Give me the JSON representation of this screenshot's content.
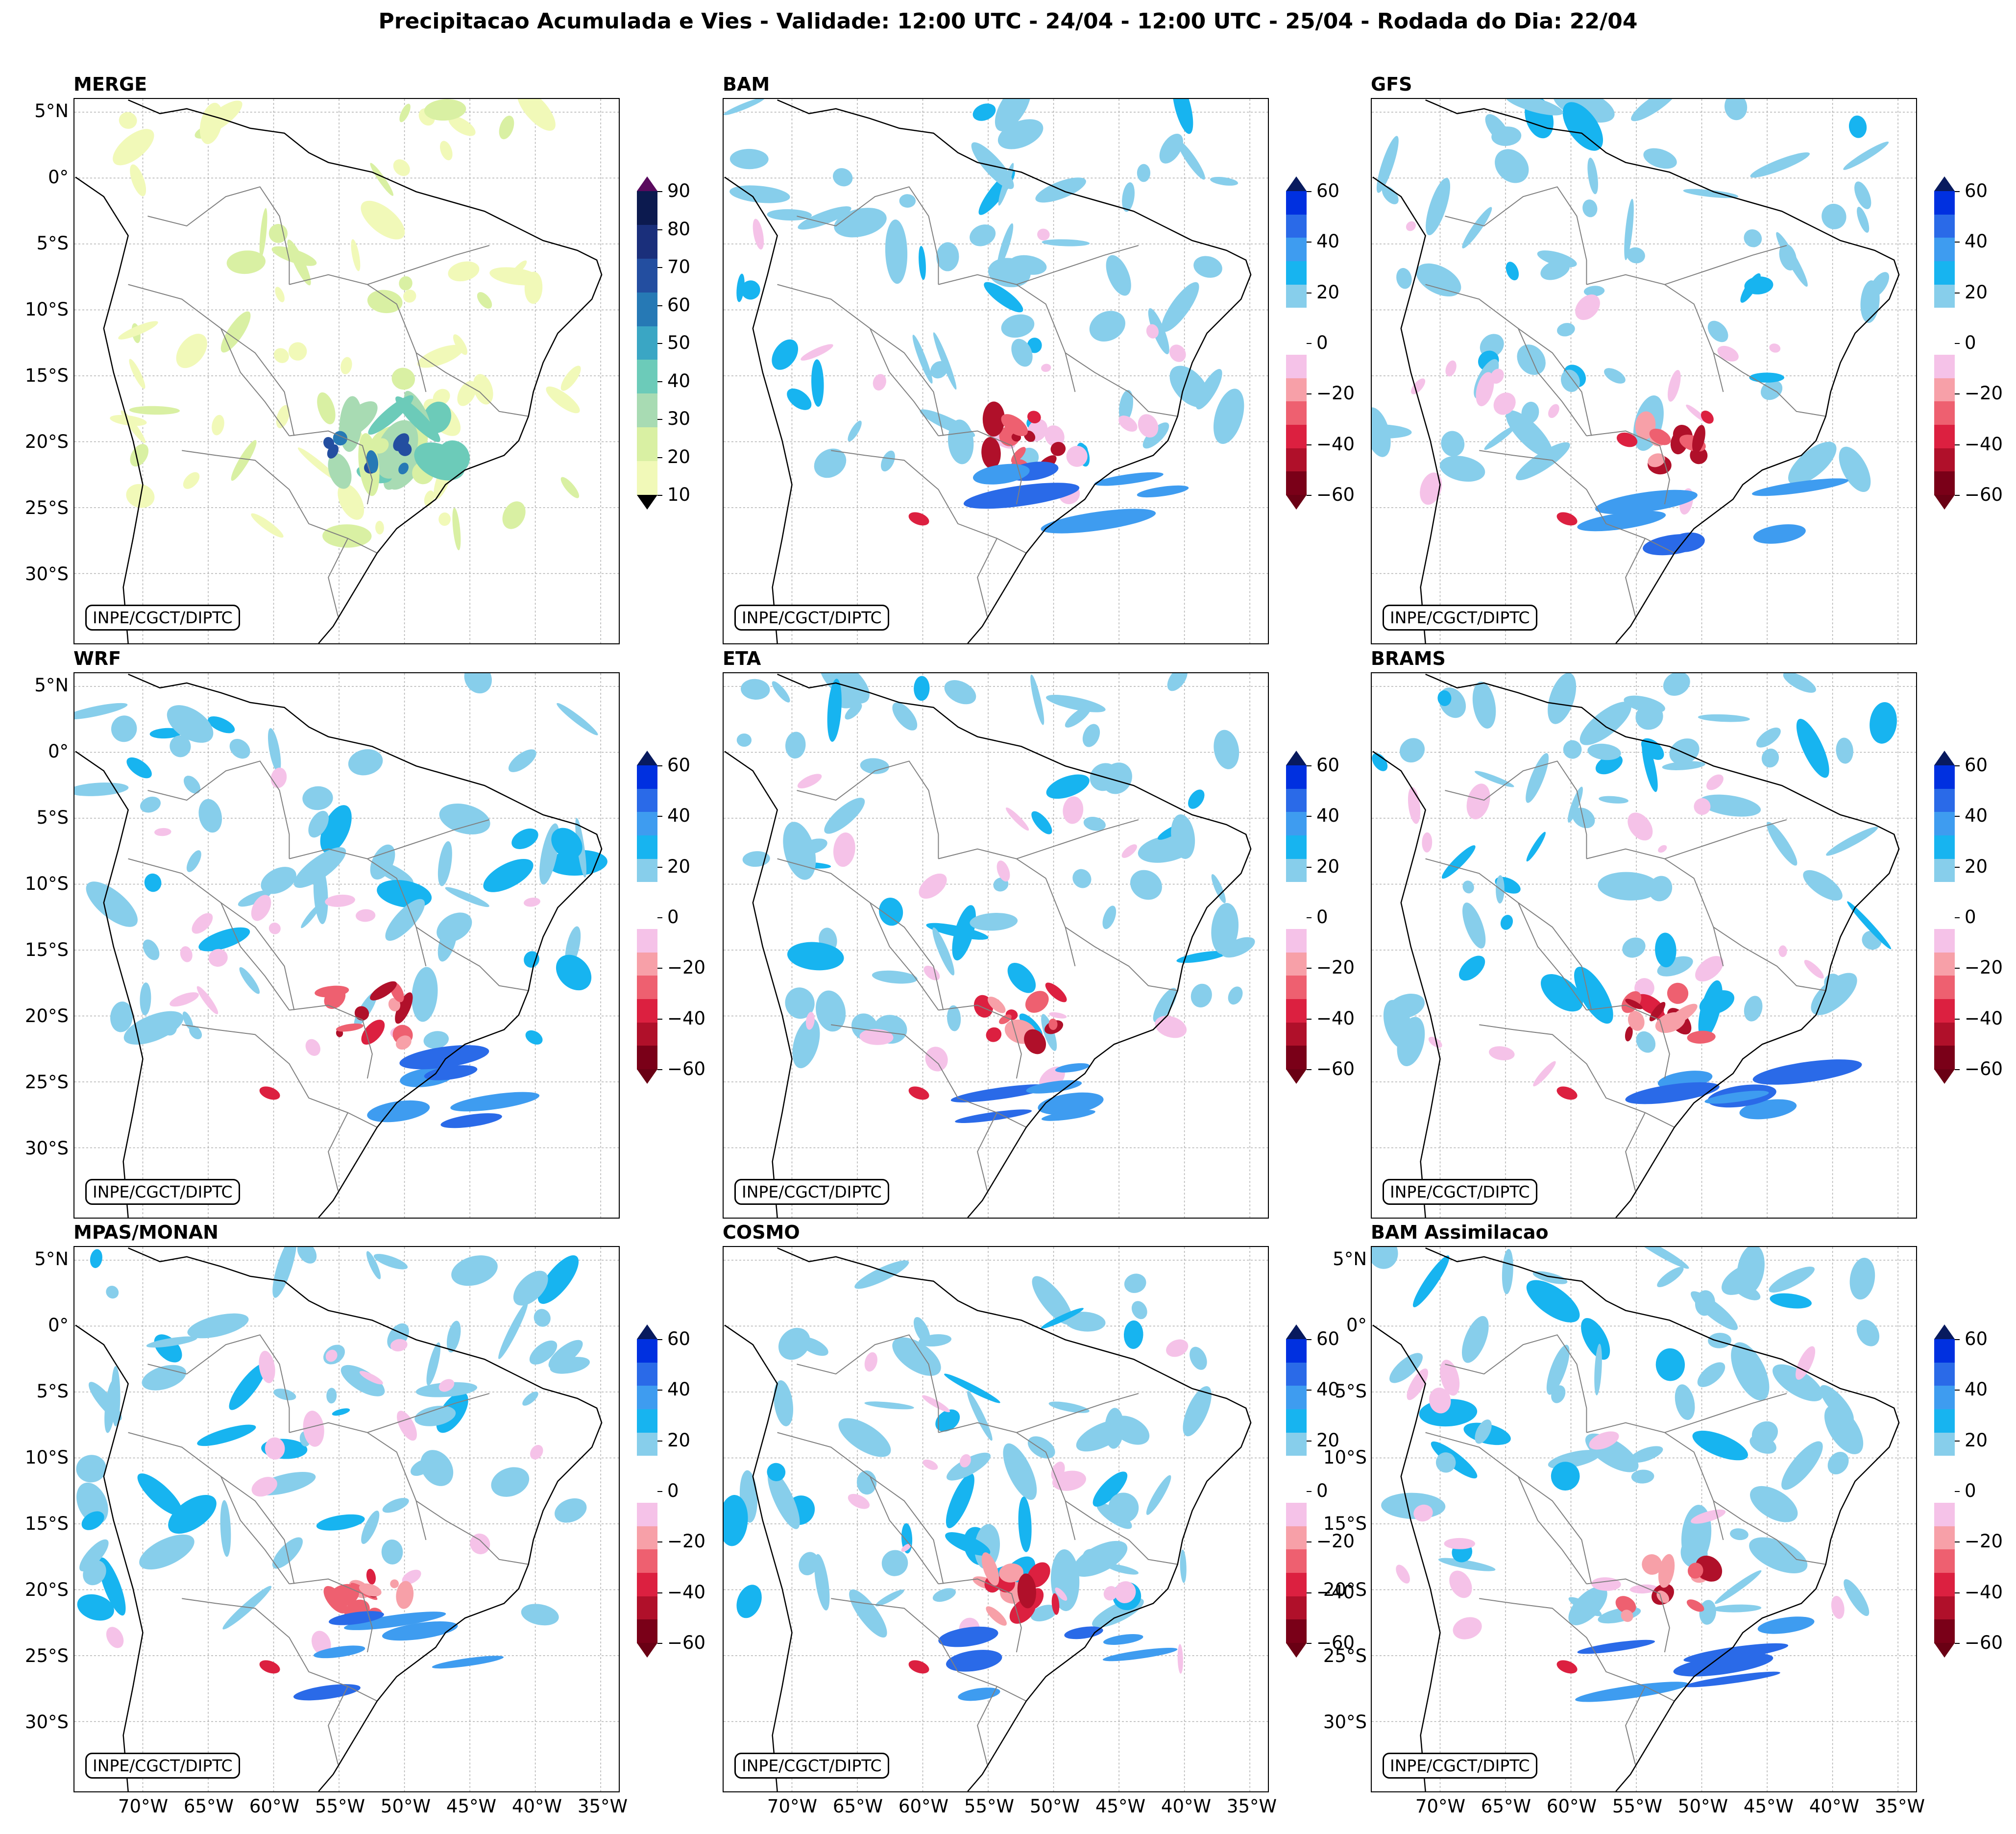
{
  "title": "Precipitacao Acumulada e Vies - Validade: 12:00 UTC - 24/04 - 12:00 UTC - 25/04 - Rodada do Dia: 22/04",
  "credit": "INPE/CGCT/DIPTC",
  "panels": [
    {
      "title": "MERGE",
      "kind": "merge"
    },
    {
      "title": "BAM",
      "kind": "bias"
    },
    {
      "title": "GFS",
      "kind": "bias"
    },
    {
      "title": "WRF",
      "kind": "bias"
    },
    {
      "title": "ETA",
      "kind": "bias"
    },
    {
      "title": "BRAMS",
      "kind": "bias"
    },
    {
      "title": "MPAS/MONAN",
      "kind": "bias"
    },
    {
      "title": "COSMO",
      "kind": "bias"
    },
    {
      "title": "BAM Assimilacao",
      "kind": "bias"
    }
  ],
  "lat_labels": [
    "5°N",
    "0°",
    "5°S",
    "10°S",
    "15°S",
    "20°S",
    "25°S",
    "30°S"
  ],
  "lon_labels": [
    "70°W",
    "65°W",
    "60°W",
    "55°W",
    "50°W",
    "45°W",
    "40°W",
    "35°W"
  ],
  "merge_colorbar": {
    "ticks": [
      "10",
      "20",
      "30",
      "40",
      "50",
      "60",
      "70",
      "80",
      "90"
    ],
    "colors": [
      "#f1f9b8",
      "#d9f0a3",
      "#a8dbb3",
      "#6ccbb9",
      "#3aa6c4",
      "#2679b5",
      "#234ea0",
      "#1a2f7b",
      "#0c1a4f"
    ],
    "over_color": "#5a0a5e",
    "under_color": "#ffffff"
  },
  "bias_colorbar": {
    "ticks": [
      "60",
      "40",
      "20",
      "0",
      "−20",
      "−40",
      "−60"
    ],
    "colors": [
      "#0030e0",
      "#2a6ae8",
      "#3e9cf0",
      "#17b4f0",
      "#87ceeb",
      "#ffffff",
      "#ffffff",
      "#f5c2e8",
      "#f7a0a8",
      "#ee6070",
      "#dc2040",
      "#b0102a",
      "#7a0018"
    ],
    "over_color": "#081a5e",
    "under_color": "#6a0014"
  },
  "map_colors": {
    "land_border": "#000000",
    "state_border": "#808080",
    "grid": "#b0b0b0"
  }
}
